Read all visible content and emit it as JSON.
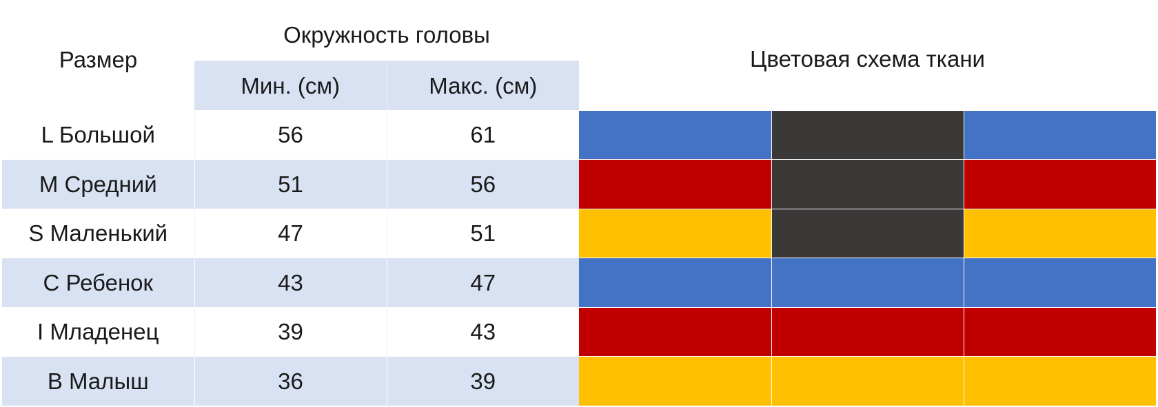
{
  "headers": {
    "size": "Размер",
    "head_circumference": "Окружность головы",
    "min": "Мин. (см)",
    "max": "Макс. (см)",
    "fabric_scheme": "Цветовая схема ткани"
  },
  "colors": {
    "blue": "#4472c4",
    "dark": "#3b3838",
    "red": "#c00000",
    "yellow": "#ffc000",
    "header_fill": "#d9e2f3"
  },
  "rows": [
    {
      "size": "L Большой",
      "min": "56",
      "max": "61",
      "fabric": [
        "#4472c4",
        "#3b3838",
        "#4472c4"
      ]
    },
    {
      "size": "M Средний",
      "min": "51",
      "max": "56",
      "fabric": [
        "#c00000",
        "#3b3838",
        "#c00000"
      ]
    },
    {
      "size": "S Маленький",
      "min": "47",
      "max": "51",
      "fabric": [
        "#ffc000",
        "#3b3838",
        "#ffc000"
      ]
    },
    {
      "size": "C Ребенок",
      "min": "43",
      "max": "47",
      "fabric": [
        "#4472c4",
        "#4472c4",
        "#4472c4"
      ]
    },
    {
      "size": "I Младенец",
      "min": "39",
      "max": "43",
      "fabric": [
        "#c00000",
        "#c00000",
        "#c00000"
      ]
    },
    {
      "size": "B Малыш",
      "min": "36",
      "max": "39",
      "fabric": [
        "#ffc000",
        "#ffc000",
        "#ffc000"
      ]
    }
  ]
}
